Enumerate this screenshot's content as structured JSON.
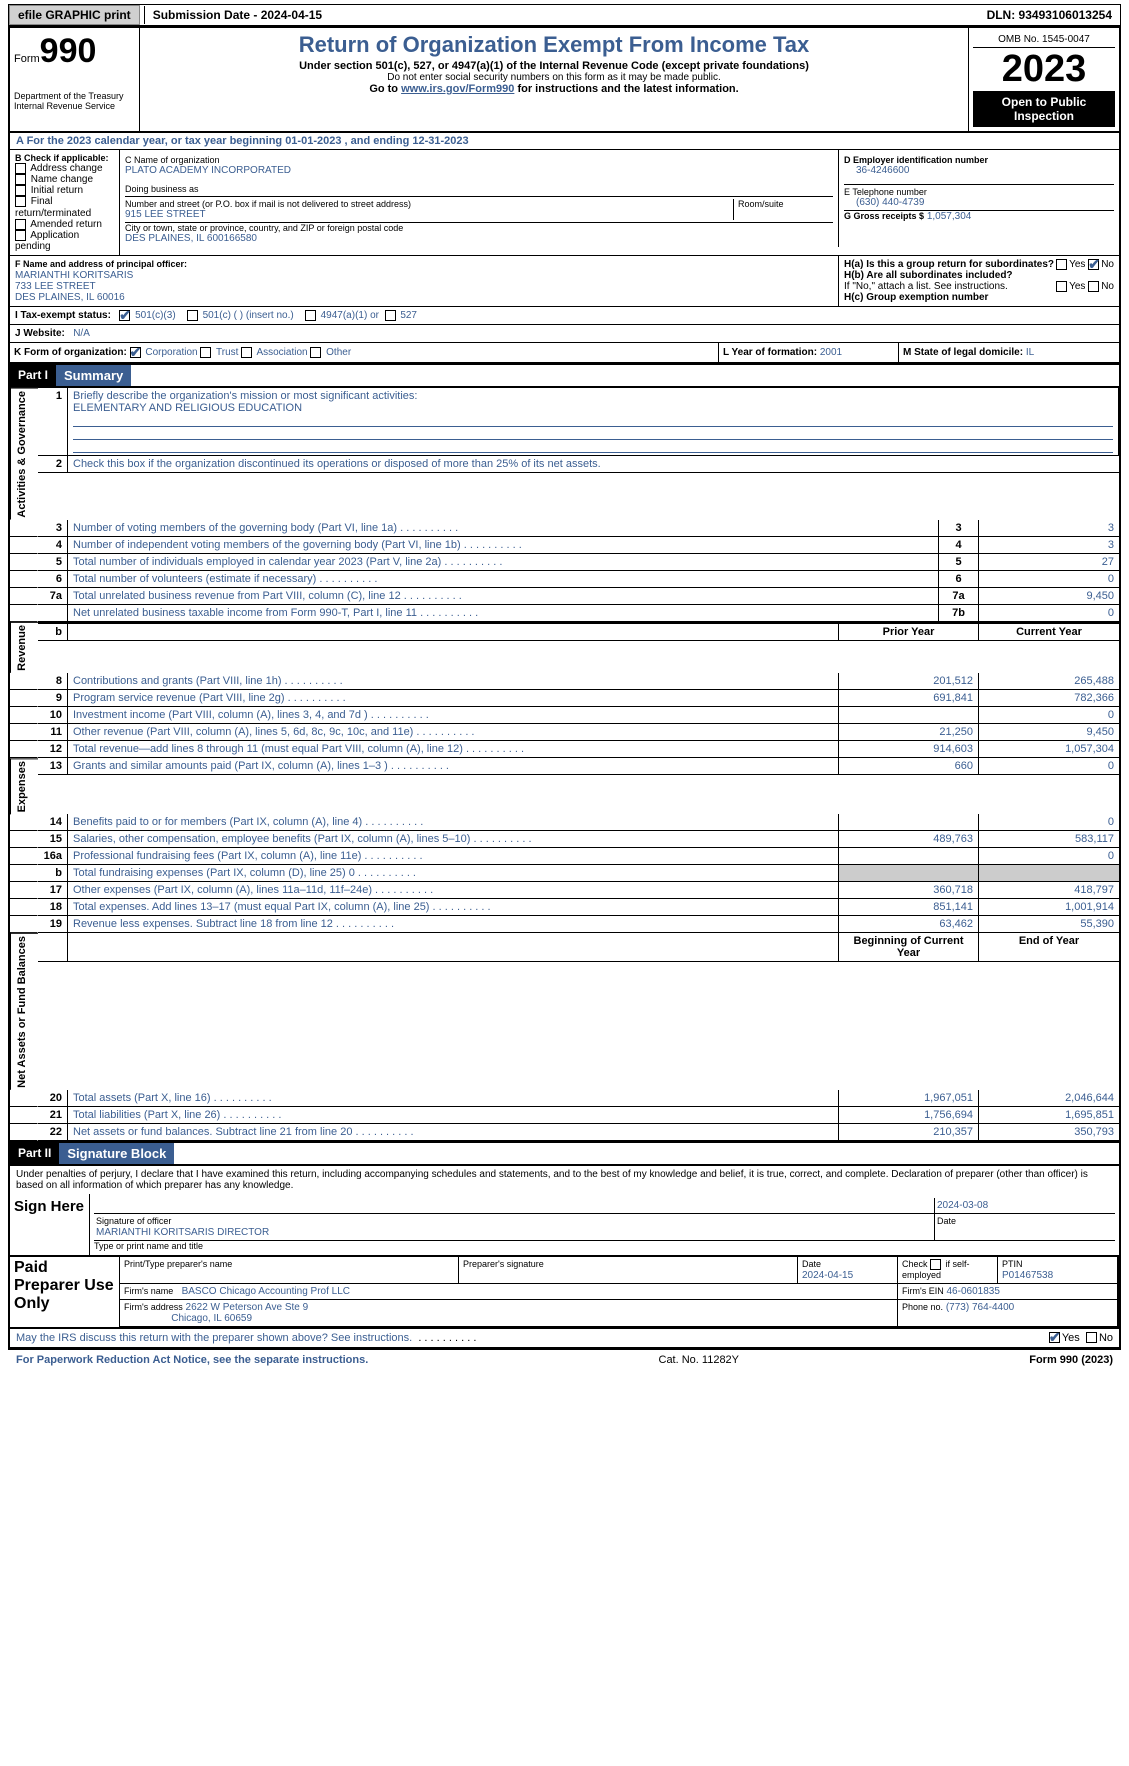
{
  "topbar": {
    "efile": "efile GRAPHIC print",
    "submission": "Submission Date - 2024-04-15",
    "dln": "DLN: 93493106013254"
  },
  "header": {
    "form_label": "Form",
    "form_no": "990",
    "dept": "Department of the Treasury",
    "irs": "Internal Revenue Service",
    "title": "Return of Organization Exempt From Income Tax",
    "sub1": "Under section 501(c), 527, or 4947(a)(1) of the Internal Revenue Code (except private foundations)",
    "sub2": "Do not enter social security numbers on this form as it may be made public.",
    "sub3": "Go to www.irs.gov/Form990 for instructions and the latest information.",
    "link": "www.irs.gov/Form990",
    "omb": "OMB No. 1545-0047",
    "year": "2023",
    "open": "Open to Public Inspection"
  },
  "line_a": "A  For the 2023 calendar year, or tax year beginning 01-01-2023    , and ending 12-31-2023",
  "box_b": {
    "label": "B Check if applicable:",
    "items": [
      "Address change",
      "Name change",
      "Initial return",
      "Final return/terminated",
      "Amended return",
      "Application pending"
    ]
  },
  "box_c": {
    "label_name": "C Name of organization",
    "org": "PLATO ACADEMY INCORPORATED",
    "dba_label": "Doing business as",
    "addr_label": "Number and street (or P.O. box if mail is not delivered to street address)",
    "room_label": "Room/suite",
    "addr": "915 LEE STREET",
    "city_label": "City or town, state or province, country, and ZIP or foreign postal code",
    "city": "DES PLAINES, IL  600166580"
  },
  "box_d": {
    "label": "D Employer identification number",
    "value": "36-4246600"
  },
  "box_e": {
    "label": "E Telephone number",
    "value": "(630) 440-4739"
  },
  "box_g": {
    "label": "G Gross receipts $",
    "value": "1,057,304"
  },
  "box_f": {
    "label": "F  Name and address of principal officer:",
    "name": "MARIANTHI KORITSARIS",
    "line1": "733 LEE STREET",
    "line2": "DES PLAINES, IL  60016"
  },
  "box_h": {
    "ha": "H(a)  Is this a group return for subordinates?",
    "hb": "H(b)  Are all subordinates included?",
    "hb_note": "If \"No,\" attach a list. See instructions.",
    "hc": "H(c)  Group exemption number",
    "yes": "Yes",
    "no": "No"
  },
  "box_i": {
    "label": "I    Tax-exempt status:",
    "opt1": "501(c)(3)",
    "opt2": "501(c) (  ) (insert no.)",
    "opt3": "4947(a)(1) or",
    "opt4": "527"
  },
  "box_j": {
    "label": "J   Website:",
    "value": "N/A"
  },
  "box_k": {
    "label": "K Form of organization:",
    "opts": [
      "Corporation",
      "Trust",
      "Association",
      "Other"
    ]
  },
  "box_l": {
    "label": "L Year of formation:",
    "value": "2001"
  },
  "box_m": {
    "label": "M State of legal domicile:",
    "value": "IL"
  },
  "part1": {
    "num": "Part I",
    "title": "Summary"
  },
  "summary": {
    "side1": "Activities & Governance",
    "side2": "Revenue",
    "side3": "Expenses",
    "side4": "Net Assets or Fund Balances",
    "l1": "Briefly describe the organization's mission or most significant activities:",
    "l1v": "ELEMENTARY AND RELIGIOUS EDUCATION",
    "l2": "Check this box       if the organization discontinued its operations or disposed of more than 25% of its net assets.",
    "rows_gov": [
      {
        "n": "3",
        "t": "Number of voting members of the governing body (Part VI, line 1a)",
        "b": "3",
        "v": "3"
      },
      {
        "n": "4",
        "t": "Number of independent voting members of the governing body (Part VI, line 1b)",
        "b": "4",
        "v": "3"
      },
      {
        "n": "5",
        "t": "Total number of individuals employed in calendar year 2023 (Part V, line 2a)",
        "b": "5",
        "v": "27"
      },
      {
        "n": "6",
        "t": "Total number of volunteers (estimate if necessary)",
        "b": "6",
        "v": "0"
      },
      {
        "n": "7a",
        "t": "Total unrelated business revenue from Part VIII, column (C), line 12",
        "b": "7a",
        "v": "9,450"
      },
      {
        "n": "",
        "t": "Net unrelated business taxable income from Form 990-T, Part I, line 11",
        "b": "7b",
        "v": "0"
      }
    ],
    "hdr_prior": "Prior Year",
    "hdr_curr": "Current Year",
    "rows_rev": [
      {
        "n": "8",
        "t": "Contributions and grants (Part VIII, line 1h)",
        "p": "201,512",
        "c": "265,488"
      },
      {
        "n": "9",
        "t": "Program service revenue (Part VIII, line 2g)",
        "p": "691,841",
        "c": "782,366"
      },
      {
        "n": "10",
        "t": "Investment income (Part VIII, column (A), lines 3, 4, and 7d )",
        "p": "",
        "c": "0"
      },
      {
        "n": "11",
        "t": "Other revenue (Part VIII, column (A), lines 5, 6d, 8c, 9c, 10c, and 11e)",
        "p": "21,250",
        "c": "9,450"
      },
      {
        "n": "12",
        "t": "Total revenue—add lines 8 through 11 (must equal Part VIII, column (A), line 12)",
        "p": "914,603",
        "c": "1,057,304"
      }
    ],
    "rows_exp": [
      {
        "n": "13",
        "t": "Grants and similar amounts paid (Part IX, column (A), lines 1–3 )",
        "p": "660",
        "c": "0"
      },
      {
        "n": "14",
        "t": "Benefits paid to or for members (Part IX, column (A), line 4)",
        "p": "",
        "c": "0"
      },
      {
        "n": "15",
        "t": "Salaries, other compensation, employee benefits (Part IX, column (A), lines 5–10)",
        "p": "489,763",
        "c": "583,117"
      },
      {
        "n": "16a",
        "t": "Professional fundraising fees (Part IX, column (A), line 11e)",
        "p": "",
        "c": "0"
      },
      {
        "n": "b",
        "t": "Total fundraising expenses (Part IX, column (D), line 25) 0",
        "p": "",
        "c": "",
        "shade": true
      },
      {
        "n": "17",
        "t": "Other expenses (Part IX, column (A), lines 11a–11d, 11f–24e)",
        "p": "360,718",
        "c": "418,797"
      },
      {
        "n": "18",
        "t": "Total expenses. Add lines 13–17 (must equal Part IX, column (A), line 25)",
        "p": "851,141",
        "c": "1,001,914"
      },
      {
        "n": "19",
        "t": "Revenue less expenses. Subtract line 18 from line 12",
        "p": "63,462",
        "c": "55,390"
      }
    ],
    "hdr_beg": "Beginning of Current Year",
    "hdr_end": "End of Year",
    "rows_net": [
      {
        "n": "20",
        "t": "Total assets (Part X, line 16)",
        "p": "1,967,051",
        "c": "2,046,644"
      },
      {
        "n": "21",
        "t": "Total liabilities (Part X, line 26)",
        "p": "1,756,694",
        "c": "1,695,851"
      },
      {
        "n": "22",
        "t": "Net assets or fund balances. Subtract line 21 from line 20",
        "p": "210,357",
        "c": "350,793"
      }
    ]
  },
  "part2": {
    "num": "Part II",
    "title": "Signature Block"
  },
  "perjury": "Under penalties of perjury, I declare that I have examined this return, including accompanying schedules and statements, and to the best of my knowledge and belief, it is true, correct, and complete. Declaration of preparer (other than officer) is based on all information of which preparer has any knowledge.",
  "sign": {
    "here": "Sign Here",
    "sig_label": "Signature of officer",
    "officer": "MARIANTHI KORITSARIS  DIRECTOR",
    "type_label": "Type or print name and title",
    "date_label": "Date",
    "date": "2024-03-08"
  },
  "prep": {
    "here": "Paid Preparer Use Only",
    "name_label": "Print/Type preparer's name",
    "sig_label": "Preparer's signature",
    "date_label": "Date",
    "date": "2024-04-15",
    "check_label": "Check         if self-employed",
    "ptin_label": "PTIN",
    "ptin": "P01467538",
    "firm_name_label": "Firm's name",
    "firm_name": "BASCO Chicago Accounting Prof LLC",
    "firm_ein_label": "Firm's EIN",
    "firm_ein": "46-0601835",
    "firm_addr_label": "Firm's address",
    "firm_addr1": "2622 W Peterson Ave Ste 9",
    "firm_addr2": "Chicago, IL  60659",
    "phone_label": "Phone no.",
    "phone": "(773) 764-4400"
  },
  "discuss": "May the IRS discuss this return with the preparer shown above? See instructions.",
  "footer": {
    "left": "For Paperwork Reduction Act Notice, see the separate instructions.",
    "mid": "Cat. No. 11282Y",
    "right": "Form 990 (2023)"
  }
}
